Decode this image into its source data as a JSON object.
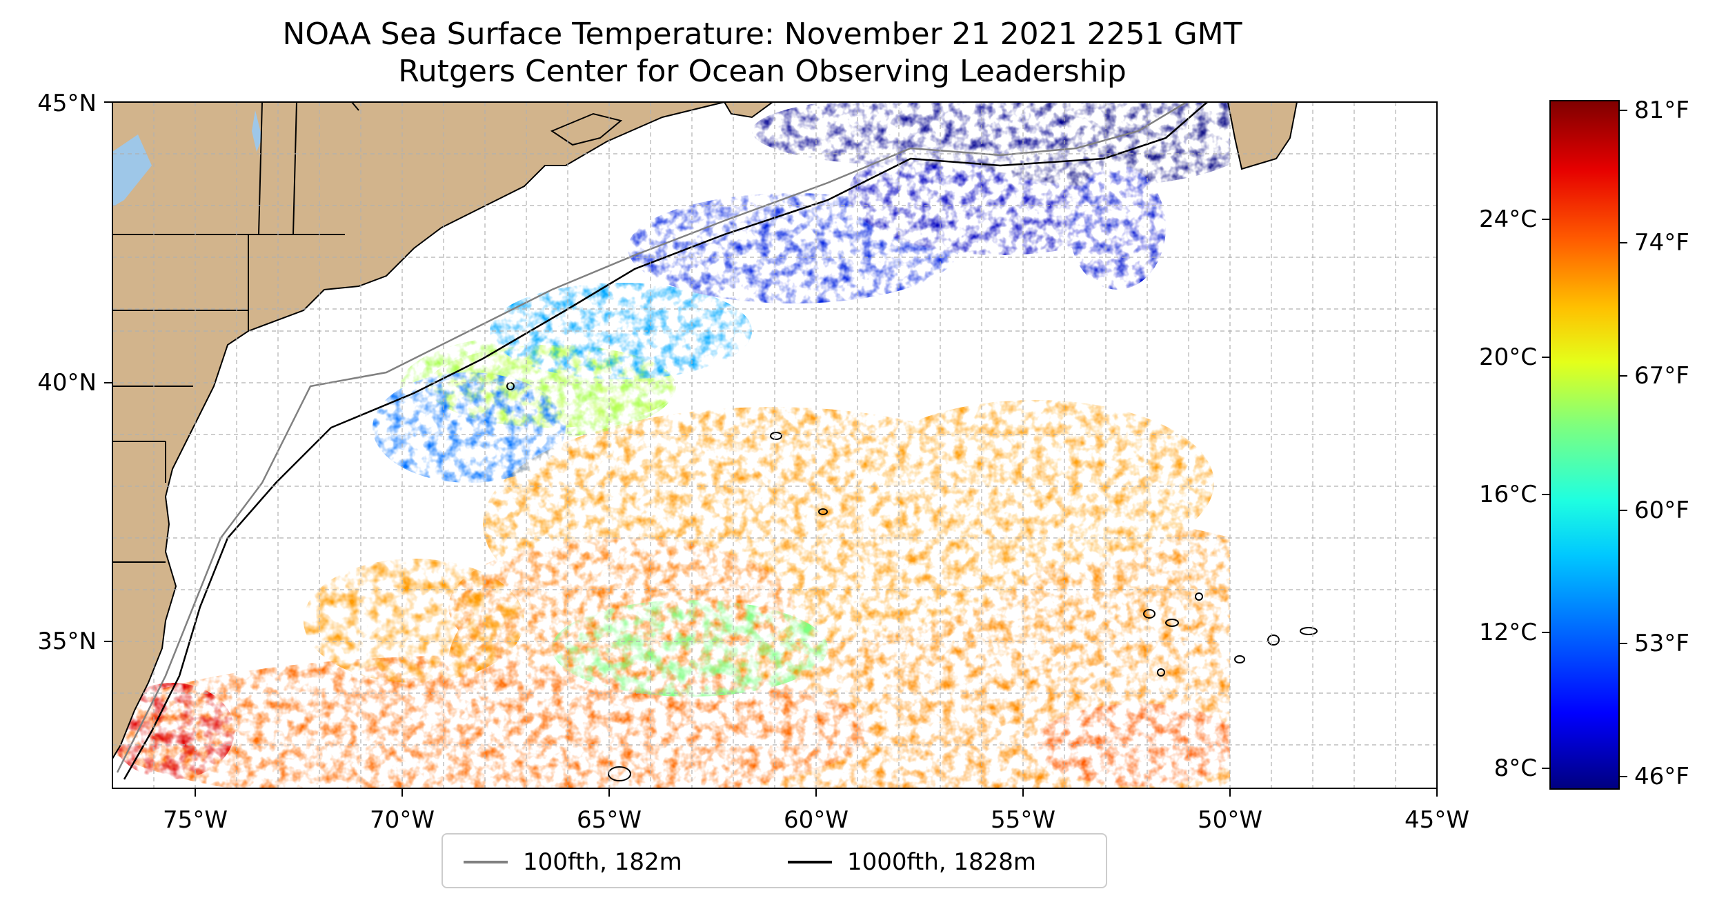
{
  "map": {
    "title_line1": "NOAA Sea Surface Temperature: November 21 2021 2251 GMT",
    "title_line2": "Rutgers Center for Ocean Observing Leadership",
    "x_ticks": [
      "75°W",
      "70°W",
      "65°W",
      "60°W",
      "55°W",
      "50°W",
      "45°W"
    ],
    "y_ticks": [
      "45°N",
      "40°N",
      "35°N"
    ],
    "extent": {
      "lon": [
        -77,
        -45
      ],
      "lat": [
        32.3,
        45
      ]
    },
    "land_color": "#d2b48c",
    "lake_color": "#9ec7e8",
    "grid": true
  },
  "colorbar": {
    "celsius_ticks": [
      "24°C",
      "20°C",
      "16°C",
      "12°C",
      "8°C"
    ],
    "fahrenheit_ticks": [
      "81°F",
      "74°F",
      "67°F",
      "60°F",
      "53°F",
      "46°F"
    ],
    "colormap": "jet",
    "colors": [
      "#00007f",
      "#0000ff",
      "#007fff",
      "#00ffff",
      "#7fff7f",
      "#ffff00",
      "#ff7f00",
      "#ff0000",
      "#7f0000"
    ]
  },
  "legend": {
    "items": [
      {
        "label": "100fth, 182m",
        "color": "#808080"
      },
      {
        "label": "1000fth, 1828m",
        "color": "#000000"
      }
    ]
  }
}
